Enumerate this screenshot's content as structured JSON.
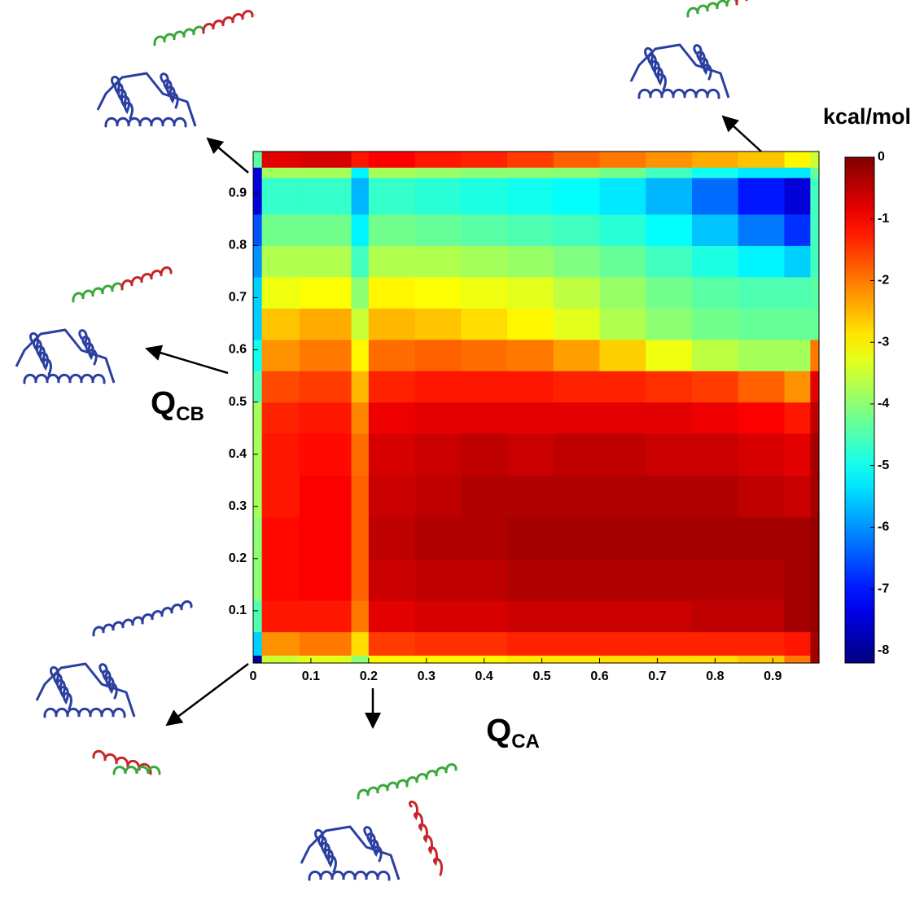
{
  "chart_data": {
    "type": "heatmap",
    "xlabel": "Q",
    "xlabel_sub": "CA",
    "ylabel": "Q",
    "ylabel_sub": "CB",
    "colorbar_label": "kcal/mol",
    "colormap": "jet",
    "xlim": [
      0,
      0.98
    ],
    "ylim": [
      0,
      0.98
    ],
    "xticks": [
      0,
      0.1,
      0.2,
      0.3,
      0.4,
      0.5,
      0.6,
      0.7,
      0.8,
      0.9
    ],
    "yticks": [
      0.1,
      0.2,
      0.3,
      0.4,
      0.5,
      0.6,
      0.7,
      0.8,
      0.9
    ],
    "clim": [
      -8.2,
      0
    ],
    "cticks": [
      0,
      -1,
      -2,
      -3,
      -4,
      -5,
      -6,
      -7,
      -8
    ],
    "xbins": [
      0,
      0.015,
      0.08,
      0.17,
      0.2,
      0.28,
      0.36,
      0.44,
      0.52,
      0.6,
      0.68,
      0.76,
      0.84,
      0.92,
      0.965,
      0.98
    ],
    "ybins": [
      0,
      0.015,
      0.06,
      0.12,
      0.2,
      0.28,
      0.36,
      0.44,
      0.5,
      0.56,
      0.62,
      0.68,
      0.74,
      0.8,
      0.86,
      0.93,
      0.95,
      0.98
    ],
    "z": [
      [
        -8,
        -3.5,
        -3.3,
        -4,
        -3,
        -3,
        -3,
        -2.9,
        -2.9,
        -2.8,
        -2.8,
        -2.8,
        -2.6,
        -2,
        -0.3
      ],
      [
        -5.5,
        -2.2,
        -2,
        -2.8,
        -1.5,
        -1.4,
        -1.4,
        -1.3,
        -1.3,
        -1.3,
        -1.3,
        -1.3,
        -1.3,
        -1.2,
        -0.3
      ],
      [
        -4.5,
        -1.2,
        -1.2,
        -2,
        -0.8,
        -0.7,
        -0.7,
        -0.6,
        -0.6,
        -0.6,
        -0.6,
        -0.5,
        -0.5,
        -0.3,
        -0.2
      ],
      [
        -4,
        -1.1,
        -1,
        -1.8,
        -0.6,
        -0.5,
        -0.5,
        -0.4,
        -0.4,
        -0.4,
        -0.4,
        -0.4,
        -0.4,
        -0.3,
        -0.2
      ],
      [
        -4,
        -1.1,
        -1,
        -1.8,
        -0.5,
        -0.4,
        -0.4,
        -0.3,
        -0.3,
        -0.3,
        -0.3,
        -0.3,
        -0.3,
        -0.3,
        -0.2
      ],
      [
        -3.8,
        -1.2,
        -1,
        -1.8,
        -0.6,
        -0.5,
        -0.4,
        -0.4,
        -0.4,
        -0.4,
        -0.4,
        -0.4,
        -0.5,
        -0.6,
        -0.3
      ],
      [
        -3.8,
        -1.2,
        -1.1,
        -1.9,
        -0.7,
        -0.6,
        -0.5,
        -0.6,
        -0.5,
        -0.5,
        -0.6,
        -0.6,
        -0.7,
        -0.8,
        -0.3
      ],
      [
        -3.8,
        -1.3,
        -1.2,
        -2.1,
        -0.9,
        -0.8,
        -0.8,
        -0.8,
        -0.8,
        -0.8,
        -0.8,
        -0.9,
        -1,
        -1.2,
        -0.5
      ],
      [
        -4.5,
        -1.6,
        -1.5,
        -2.5,
        -1.3,
        -1.2,
        -1.2,
        -1.2,
        -1.3,
        -1.3,
        -1.4,
        -1.5,
        -1.8,
        -2.2,
        -0.8
      ],
      [
        -5,
        -2.2,
        -2,
        -3,
        -1.9,
        -1.8,
        -1.9,
        -2,
        -2.3,
        -2.7,
        -3.2,
        -3.6,
        -3.8,
        -3.8,
        -2
      ],
      [
        -5.5,
        -2.6,
        -2.4,
        -3.5,
        -2.5,
        -2.6,
        -2.8,
        -3,
        -3.3,
        -3.7,
        -4,
        -4.2,
        -4.3,
        -4.3,
        -4.3
      ],
      [
        -5.5,
        -3.2,
        -3.1,
        -4,
        -3,
        -3.1,
        -3.2,
        -3.3,
        -3.6,
        -3.9,
        -4.2,
        -4.4,
        -4.5,
        -4.5,
        -4.4
      ],
      [
        -6,
        -3.7,
        -3.7,
        -4.6,
        -3.7,
        -3.7,
        -3.8,
        -3.9,
        -4.1,
        -4.3,
        -4.6,
        -4.9,
        -5.2,
        -5.5,
        -4.6
      ],
      [
        -6.5,
        -4.2,
        -4.2,
        -5.2,
        -4.2,
        -4.3,
        -4.4,
        -4.5,
        -4.6,
        -4.8,
        -5.1,
        -5.6,
        -6.2,
        -6.8,
        -4.6
      ],
      [
        -7.5,
        -4.7,
        -4.7,
        -5.7,
        -4.7,
        -4.8,
        -4.9,
        -5,
        -5.1,
        -5.3,
        -5.7,
        -6.3,
        -7,
        -7.5,
        -4.6
      ],
      [
        -7.5,
        -3.8,
        -3.8,
        -5.2,
        -3.8,
        -3.9,
        -4,
        -4,
        -4,
        -4.2,
        -4.6,
        -5,
        -5.3,
        -5.3,
        -4.3
      ],
      [
        -4.4,
        -0.8,
        -0.7,
        -1.2,
        -1,
        -1.2,
        -1.3,
        -1.5,
        -1.8,
        -2,
        -2.2,
        -2.4,
        -2.6,
        -3,
        -3.5
      ]
    ]
  }
}
